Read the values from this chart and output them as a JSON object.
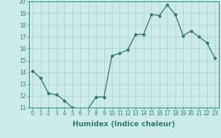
{
  "xlabel": "Humidex (Indice chaleur)",
  "ylabel": "",
  "x_values": [
    0,
    1,
    2,
    3,
    4,
    5,
    6,
    7,
    8,
    9,
    10,
    11,
    12,
    13,
    14,
    15,
    16,
    17,
    18,
    19,
    20,
    21,
    22,
    23
  ],
  "y_values": [
    14.1,
    13.5,
    12.2,
    12.1,
    11.6,
    11.0,
    10.9,
    10.9,
    11.9,
    11.9,
    15.4,
    15.6,
    15.9,
    17.2,
    17.2,
    18.9,
    18.8,
    19.7,
    18.9,
    17.1,
    17.5,
    17.0,
    16.5,
    15.2
  ],
  "line_color": "#2e7d73",
  "marker": "D",
  "marker_size": 2,
  "bg_color": "#cceae8",
  "grid_color": "#aad4d0",
  "ylim": [
    11,
    20
  ],
  "xlim": [
    -0.5,
    23.5
  ],
  "yticks": [
    11,
    12,
    13,
    14,
    15,
    16,
    17,
    18,
    19,
    20
  ],
  "xticks": [
    0,
    1,
    2,
    3,
    4,
    5,
    6,
    7,
    8,
    9,
    10,
    11,
    12,
    13,
    14,
    15,
    16,
    17,
    18,
    19,
    20,
    21,
    22,
    23
  ],
  "tick_label_fontsize": 5.5,
  "xlabel_fontsize": 7.5,
  "line_width": 1.0
}
